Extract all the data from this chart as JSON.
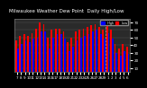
{
  "title": "Milwaukee Weather Dew Point  Daily High/Low",
  "background_color": "#000000",
  "plot_bg_color": "#2a2a2a",
  "fig_bg_color": "#000000",
  "categories": [
    "7",
    "8",
    "9",
    "10",
    "11",
    "12",
    "13",
    "14",
    "15",
    "16",
    "17",
    "18",
    "19",
    "20",
    "21",
    "22",
    "23",
    "24",
    "25",
    "26",
    "27",
    "28",
    "29",
    "1",
    "2",
    "3",
    "4",
    "5",
    "6"
  ],
  "high_values": [
    46,
    52,
    54,
    52,
    56,
    62,
    70,
    68,
    50,
    60,
    62,
    62,
    58,
    44,
    50,
    58,
    60,
    62,
    64,
    66,
    68,
    64,
    60,
    68,
    60,
    42,
    36,
    42,
    38
  ],
  "low_values": [
    36,
    42,
    46,
    44,
    48,
    50,
    58,
    58,
    36,
    50,
    54,
    54,
    48,
    32,
    38,
    46,
    50,
    52,
    54,
    58,
    60,
    54,
    48,
    56,
    48,
    30,
    26,
    32,
    28
  ],
  "ylim_min": 5,
  "ylim_max": 75,
  "yticks": [
    10,
    20,
    30,
    40,
    50,
    60,
    70
  ],
  "grid_color": "#555555",
  "high_bar_color": "#ff0000",
  "low_bar_color": "#0000ff",
  "month_dividers": [
    22.5
  ],
  "divider_color": "#aaaaaa",
  "legend_high_color": "#0000ff",
  "legend_low_color": "#ff0000",
  "title_color": "#ffffff",
  "tick_color": "#ffffff",
  "title_fontsize": 4.0,
  "tick_fontsize": 3.0,
  "bar_width": 0.4
}
